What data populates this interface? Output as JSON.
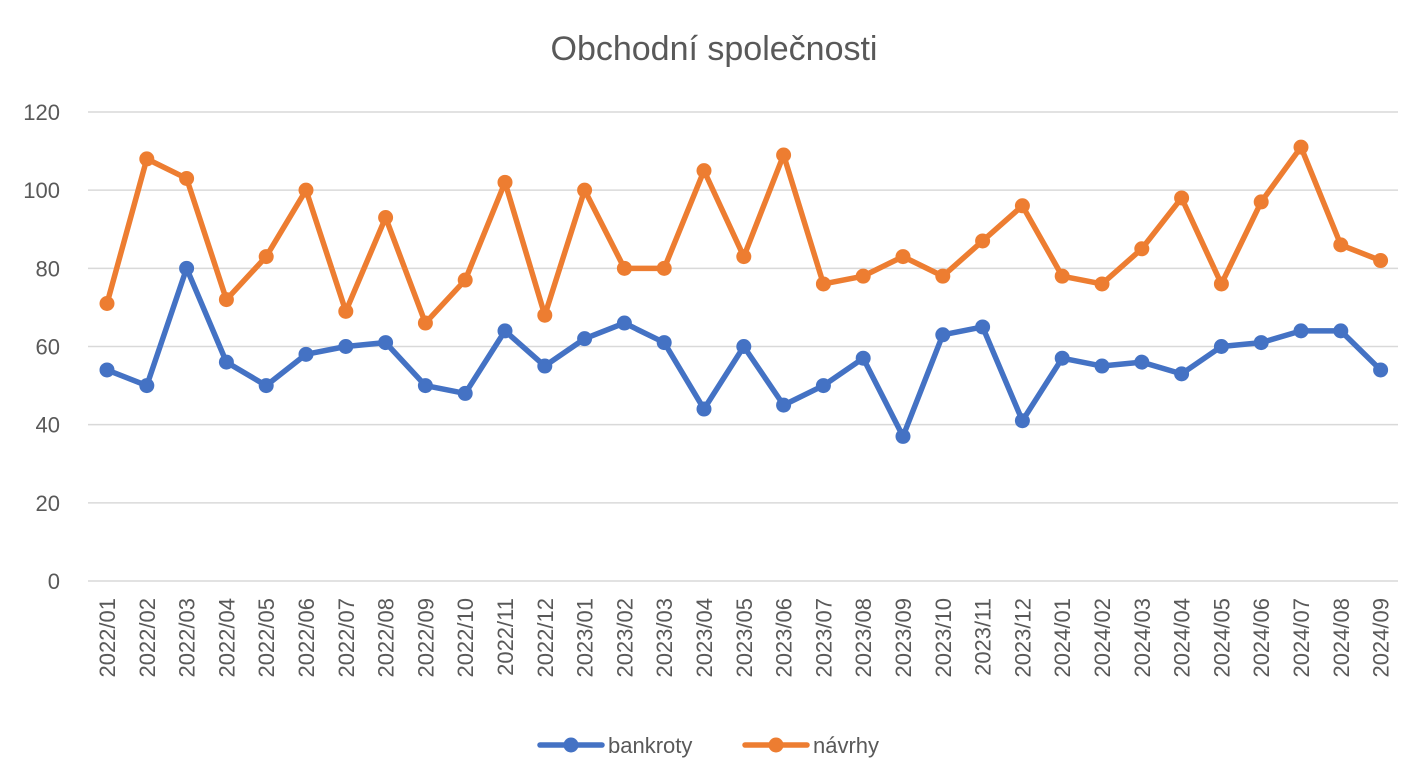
{
  "chart_data": {
    "type": "line",
    "title": "Obchodní společnosti",
    "xlabel": "",
    "ylabel": "",
    "ylim": [
      0,
      120
    ],
    "yticks": [
      0,
      20,
      40,
      60,
      80,
      100,
      120
    ],
    "grid": true,
    "legend_position": "bottom",
    "categories": [
      "2022/01",
      "2022/02",
      "2022/03",
      "2022/04",
      "2022/05",
      "2022/06",
      "2022/07",
      "2022/08",
      "2022/09",
      "2022/10",
      "2022/11",
      "2022/12",
      "2023/01",
      "2023/02",
      "2023/03",
      "2023/04",
      "2023/05",
      "2023/06",
      "2023/07",
      "2023/08",
      "2023/09",
      "2023/10",
      "2023/11",
      "2023/12",
      "2024/01",
      "2024/02",
      "2024/03",
      "2024/04",
      "2024/05",
      "2024/06",
      "2024/07",
      "2024/08",
      "2024/09"
    ],
    "series": [
      {
        "name": "bankroty",
        "color": "#4472c4",
        "values": [
          54,
          50,
          80,
          56,
          50,
          58,
          60,
          61,
          50,
          48,
          64,
          55,
          62,
          66,
          61,
          44,
          60,
          45,
          50,
          57,
          37,
          63,
          65,
          41,
          57,
          55,
          56,
          53,
          60,
          61,
          64,
          64,
          54
        ]
      },
      {
        "name": "návrhy",
        "color": "#ed7d31",
        "values": [
          71,
          108,
          103,
          72,
          83,
          100,
          69,
          93,
          66,
          77,
          102,
          68,
          100,
          80,
          80,
          105,
          83,
          109,
          76,
          78,
          83,
          78,
          87,
          96,
          78,
          76,
          85,
          98,
          76,
          97,
          111,
          86,
          82
        ]
      }
    ]
  }
}
